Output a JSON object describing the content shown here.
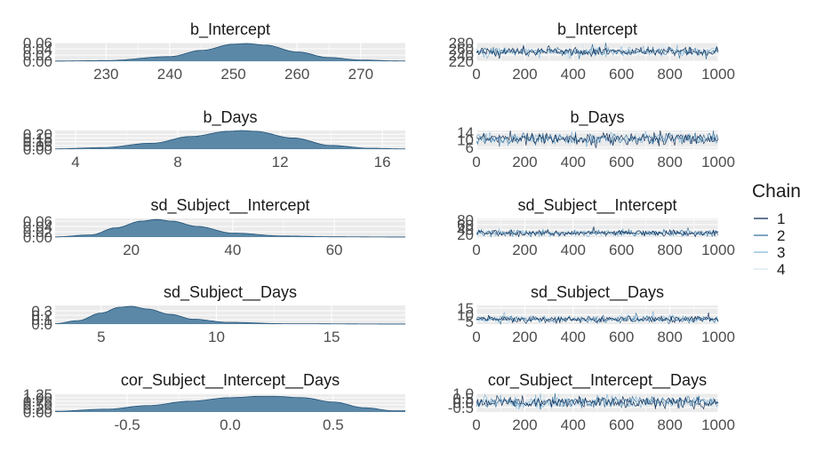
{
  "legend": {
    "title": "Chain",
    "entries": [
      "1",
      "2",
      "3",
      "4"
    ],
    "colors": [
      "#011f4b",
      "#2b6a96",
      "#7fb3d5",
      "#d1e5f0"
    ]
  },
  "colors": {
    "density_fill": "#5b88a6",
    "density_line": "#1e4f77",
    "panel_bg": "#ebebeb",
    "grid": "#ffffff"
  },
  "chart_data": [
    {
      "type": "area",
      "title": "b_Intercept",
      "kind": "density",
      "x": [
        222,
        230,
        240,
        245,
        250,
        252,
        255,
        260,
        265,
        270,
        276
      ],
      "y": [
        0.0005,
        0.002,
        0.015,
        0.035,
        0.055,
        0.057,
        0.052,
        0.03,
        0.012,
        0.004,
        0.0008
      ],
      "xlim": [
        222,
        277
      ],
      "ylim": [
        0,
        0.06
      ],
      "xticks": [
        "230",
        "240",
        "250",
        "260",
        "270"
      ],
      "xtick_values": [
        230,
        240,
        250,
        260,
        270
      ],
      "yticks": [
        "0.00",
        "0.02",
        "0.04",
        "0.06"
      ],
      "ytick_values": [
        0,
        0.02,
        0.04,
        0.06
      ]
    },
    {
      "type": "line",
      "title": "b_Intercept",
      "kind": "trace",
      "xlim": [
        0,
        1000
      ],
      "ylim": [
        220,
        280
      ],
      "center": 251,
      "spread": 7,
      "xticks": [
        "0",
        "200",
        "400",
        "600",
        "800",
        "1000"
      ],
      "xtick_values": [
        0,
        200,
        400,
        600,
        800,
        1000
      ],
      "yticks": [
        "220",
        "240",
        "260",
        "280"
      ],
      "ytick_values": [
        220,
        240,
        260,
        280
      ]
    },
    {
      "type": "area",
      "title": "b_Days",
      "kind": "density",
      "x": [
        3.2,
        5,
        7,
        8.5,
        10,
        10.5,
        11,
        12.5,
        14,
        15.5,
        16.8
      ],
      "y": [
        0.003,
        0.02,
        0.08,
        0.17,
        0.24,
        0.25,
        0.24,
        0.15,
        0.05,
        0.012,
        0.003
      ],
      "xlim": [
        3.2,
        16.9
      ],
      "ylim": [
        0,
        0.25
      ],
      "xticks": [
        "4",
        "8",
        "12",
        "16"
      ],
      "xtick_values": [
        4,
        8,
        12,
        16
      ],
      "yticks": [
        "0.00",
        "0.05",
        "0.10",
        "0.15",
        "0.20"
      ],
      "ytick_values": [
        0,
        0.05,
        0.1,
        0.15,
        0.2
      ]
    },
    {
      "type": "line",
      "title": "b_Days",
      "kind": "trace",
      "xlim": [
        0,
        1000
      ],
      "ylim": [
        5,
        15
      ],
      "center": 10.5,
      "spread": 1.6,
      "xticks": [
        "0",
        "200",
        "400",
        "600",
        "800",
        "1000"
      ],
      "xtick_values": [
        0,
        200,
        400,
        600,
        800,
        1000
      ],
      "yticks": [
        "6",
        "10",
        "14"
      ],
      "ytick_values": [
        6,
        10,
        14
      ]
    },
    {
      "type": "area",
      "title": "sd_Subject__Intercept",
      "kind": "density",
      "x": [
        5,
        12,
        17,
        22,
        25,
        28,
        33,
        40,
        50,
        60,
        73
      ],
      "y": [
        0.0005,
        0.008,
        0.035,
        0.06,
        0.066,
        0.06,
        0.04,
        0.015,
        0.004,
        0.001,
        0.0002
      ],
      "xlim": [
        5,
        74
      ],
      "ylim": [
        0,
        0.07
      ],
      "xticks": [
        "20",
        "40",
        "60"
      ],
      "xtick_values": [
        20,
        40,
        60
      ],
      "yticks": [
        "0.00",
        "0.02",
        "0.04",
        "0.06"
      ],
      "ytick_values": [
        0,
        0.02,
        0.04,
        0.06
      ]
    },
    {
      "type": "line",
      "title": "sd_Subject__Intercept",
      "kind": "trace",
      "xlim": [
        0,
        1000
      ],
      "ylim": [
        10,
        85
      ],
      "center": 26,
      "spread": 6,
      "xticks": [
        "0",
        "200",
        "400",
        "600",
        "800",
        "1000"
      ],
      "xtick_values": [
        0,
        200,
        400,
        600,
        800,
        1000
      ],
      "yticks": [
        "20",
        "40",
        "60",
        "80"
      ],
      "ytick_values": [
        20,
        40,
        60,
        80
      ]
    },
    {
      "type": "area",
      "title": "sd_Subject__Days",
      "kind": "density",
      "x": [
        3,
        4,
        5,
        5.8,
        6.3,
        7,
        8,
        9,
        10.5,
        13,
        18
      ],
      "y": [
        0.01,
        0.08,
        0.25,
        0.38,
        0.4,
        0.34,
        0.22,
        0.11,
        0.04,
        0.008,
        0.001
      ],
      "xlim": [
        3,
        18.2
      ],
      "ylim": [
        0,
        0.42
      ],
      "xticks": [
        "5",
        "10",
        "15"
      ],
      "xtick_values": [
        5,
        10,
        15
      ],
      "yticks": [
        "0.0",
        "0.1",
        "0.2",
        "0.3"
      ],
      "ytick_values": [
        0,
        0.1,
        0.2,
        0.3
      ]
    },
    {
      "type": "line",
      "title": "sd_Subject__Days",
      "kind": "trace",
      "xlim": [
        0,
        1000
      ],
      "ylim": [
        3,
        17
      ],
      "center": 6.5,
      "spread": 1.3,
      "xticks": [
        "0",
        "200",
        "400",
        "600",
        "800",
        "1000"
      ],
      "xtick_values": [
        0,
        200,
        400,
        600,
        800,
        1000
      ],
      "yticks": [
        "5",
        "10",
        "15"
      ],
      "ytick_values": [
        5,
        10,
        15
      ]
    },
    {
      "type": "area",
      "title": "cor_Subject__Intercept__Days",
      "kind": "density",
      "x": [
        -0.85,
        -0.6,
        -0.4,
        -0.2,
        0,
        0.15,
        0.2,
        0.35,
        0.5,
        0.65,
        0.8
      ],
      "y": [
        0.05,
        0.2,
        0.45,
        0.75,
        1.0,
        1.1,
        1.1,
        1.0,
        0.7,
        0.3,
        0.08
      ],
      "xlim": [
        -0.85,
        0.85
      ],
      "ylim": [
        0,
        1.3
      ],
      "xticks": [
        "-0.5",
        "0.0",
        "0.5"
      ],
      "xtick_values": [
        -0.5,
        0,
        0.5
      ],
      "yticks": [
        "0.00",
        "0.25",
        "0.50",
        "0.75",
        "1.00",
        "1.25"
      ],
      "ytick_values": [
        0,
        0.25,
        0.5,
        0.75,
        1.0,
        1.25
      ]
    },
    {
      "type": "line",
      "title": "cor_Subject__Intercept__Days",
      "kind": "trace",
      "xlim": [
        0,
        1000
      ],
      "ylim": [
        -1,
        1
      ],
      "center": 0.05,
      "spread": 0.3,
      "xticks": [
        "0",
        "200",
        "400",
        "600",
        "800",
        "1000"
      ],
      "xtick_values": [
        0,
        200,
        400,
        600,
        800,
        1000
      ],
      "yticks": [
        "-0.5",
        "0.0",
        "0.5",
        "1.0"
      ],
      "ytick_values": [
        -0.5,
        0,
        0.5,
        1.0
      ]
    }
  ]
}
